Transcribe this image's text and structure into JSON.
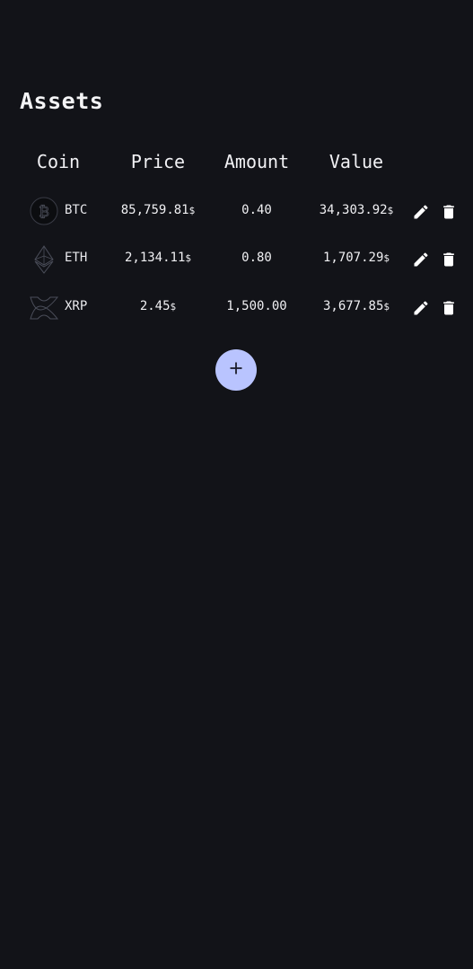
{
  "page": {
    "title": "Assets"
  },
  "table": {
    "headers": {
      "coin": "Coin",
      "price": "Price",
      "amount": "Amount",
      "value": "Value"
    },
    "rows": [
      {
        "icon": "bitcoin-icon",
        "symbol": "BTC",
        "price": "85,759.81",
        "price_currency": "$",
        "amount": "0.40",
        "value": "34,303.92",
        "value_currency": "$"
      },
      {
        "icon": "ethereum-icon",
        "symbol": "ETH",
        "price": "2,134.11",
        "price_currency": "$",
        "amount": "0.80",
        "value": "1,707.29",
        "value_currency": "$"
      },
      {
        "icon": "xrp-icon",
        "symbol": "XRP",
        "price": "2.45",
        "price_currency": "$",
        "amount": "1,500.00",
        "value": "3,677.85",
        "value_currency": "$"
      }
    ],
    "row_actions": [
      "edit-icon",
      "delete-icon"
    ]
  },
  "add_button": {
    "icon": "plus-icon"
  },
  "colors": {
    "background": "#121318",
    "accent": "#b9c4ff",
    "text": "#ffffff"
  }
}
